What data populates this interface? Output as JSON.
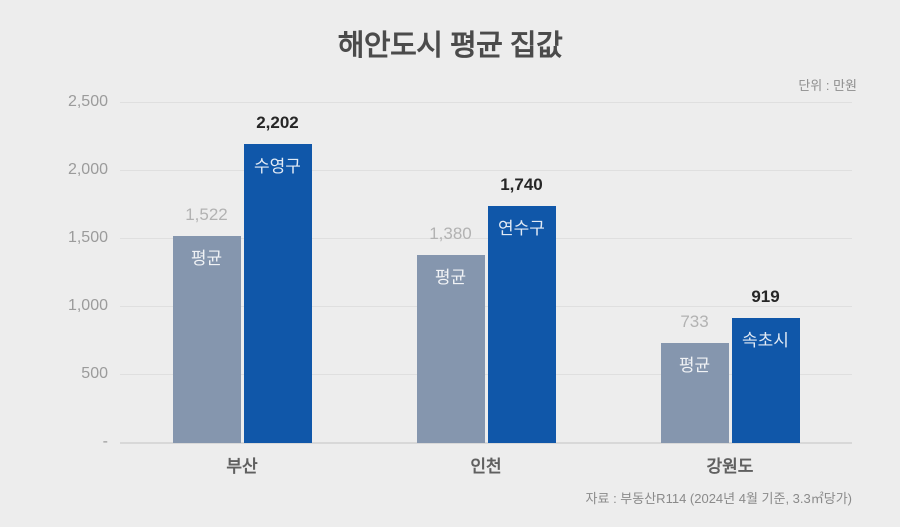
{
  "page": {
    "background_color": "#EDEDED"
  },
  "chart_data": {
    "type": "bar",
    "title": "해안도시 평균 집값",
    "unit_label": "단위 : 만원",
    "source": "자료 : 부동산R114 (2024년 4월 기준, 3.3㎡당가)",
    "categories": [
      "부산",
      "인천",
      "강원도"
    ],
    "series": [
      {
        "id": "average",
        "bar_labels": [
          "평균",
          "평균",
          "평균"
        ],
        "values": [
          1522,
          1380,
          733
        ],
        "value_labels": [
          "1,522",
          "1,380",
          "733"
        ],
        "bar_color": "#8596AE",
        "value_label_color": "#B2B2B2",
        "value_label_weight": "400"
      },
      {
        "id": "district",
        "bar_labels": [
          "수영구",
          "연수구",
          "속초시"
        ],
        "values": [
          2202,
          1740,
          919
        ],
        "value_labels": [
          "2,202",
          "1,740",
          "919"
        ],
        "bar_color": "#1057A9",
        "value_label_color": "#262626",
        "value_label_weight": "700"
      }
    ],
    "ylim": [
      0,
      2500
    ],
    "yticks": [
      {
        "value": 2500,
        "label": "2,500"
      },
      {
        "value": 2000,
        "label": "2,000"
      },
      {
        "value": 1500,
        "label": "1,500"
      },
      {
        "value": 1000,
        "label": "1,000"
      },
      {
        "value": 500,
        "label": "500"
      },
      {
        "value": 0,
        "label": "-"
      }
    ],
    "grid": true,
    "legend_position": "none"
  }
}
